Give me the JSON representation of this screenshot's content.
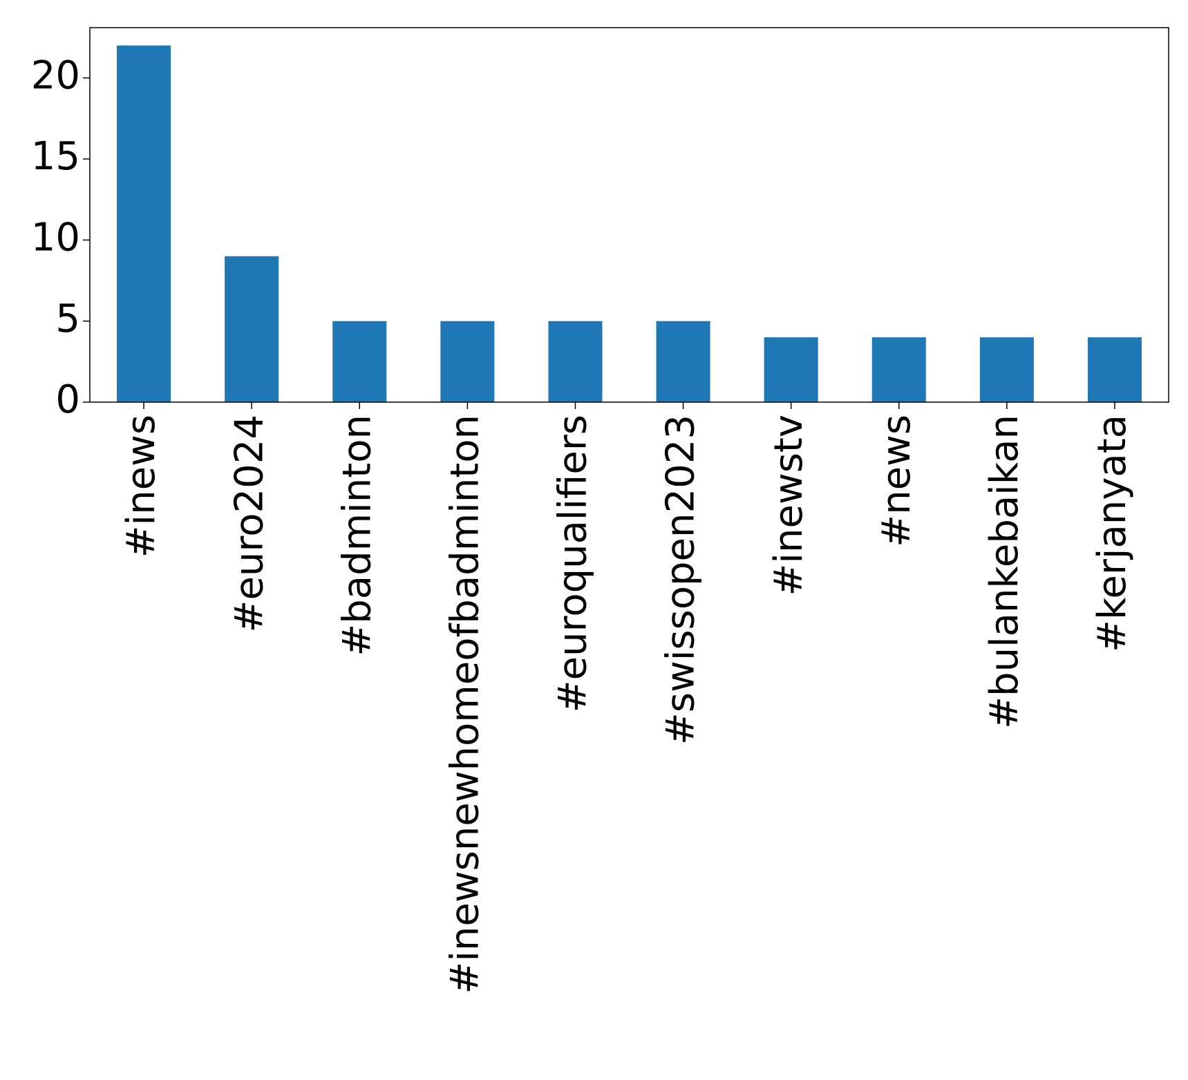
{
  "chart_data": {
    "type": "bar",
    "categories": [
      "#inews",
      "#euro2024",
      "#badminton",
      "#inewsnewhomeofbadminton",
      "#euroqualifiers",
      "#swissopen2023",
      "#inewstv",
      "#news",
      "#bulankebaikan",
      "#kerjanyata"
    ],
    "values": [
      22,
      9,
      5,
      5,
      5,
      5,
      4,
      4,
      4,
      4
    ],
    "title": "",
    "xlabel": "",
    "ylabel": "",
    "ylim": [
      0,
      23.1
    ],
    "yticks": [
      0,
      5,
      10,
      15,
      20
    ],
    "grid": false,
    "legend": "none",
    "bar_color": "#1f77b4",
    "x_label_rotation": -90
  }
}
